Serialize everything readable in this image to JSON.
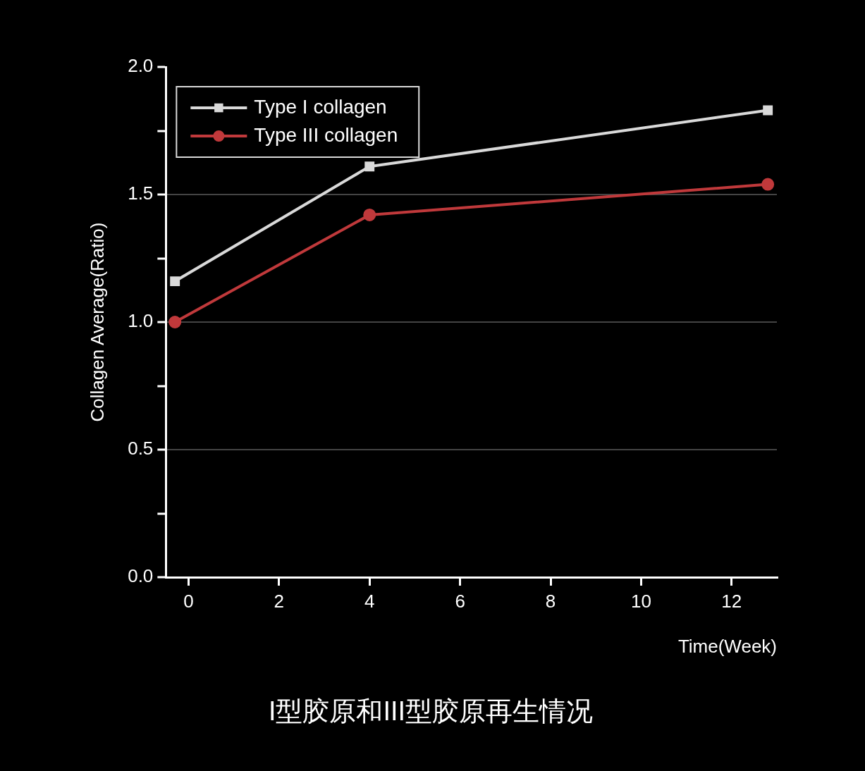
{
  "chart_data": {
    "type": "line",
    "title": "I型胶原和III型胶原再生情况",
    "xlabel": "Time(Week)",
    "ylabel": "Collagen Average(Ratio)",
    "x": [
      -0.3,
      4,
      12.8
    ],
    "series": [
      {
        "name": "Type I collagen",
        "color": "#d9d9d9",
        "marker": "square",
        "values": [
          1.16,
          1.61,
          1.83
        ]
      },
      {
        "name": "Type III collagen",
        "color": "#c0393b",
        "marker": "circle",
        "values": [
          1.0,
          1.42,
          1.54
        ]
      }
    ],
    "xlim": [
      -0.5,
      13
    ],
    "xticks": [
      0,
      2,
      4,
      6,
      8,
      10,
      12
    ],
    "ylim": [
      0,
      2
    ],
    "yticks": [
      {
        "value": 0,
        "label": "0.0"
      },
      {
        "value": 0.25,
        "label": null
      },
      {
        "value": 0.5,
        "label": "0.5"
      },
      {
        "value": 0.75,
        "label": null
      },
      {
        "value": 1,
        "label": "1.0"
      },
      {
        "value": 1.25,
        "label": null
      },
      {
        "value": 1.5,
        "label": "1.5"
      },
      {
        "value": 1.75,
        "label": null
      },
      {
        "value": 2,
        "label": "2.0"
      }
    ],
    "grid": "y",
    "legend": "top left",
    "line_style": "solid"
  }
}
